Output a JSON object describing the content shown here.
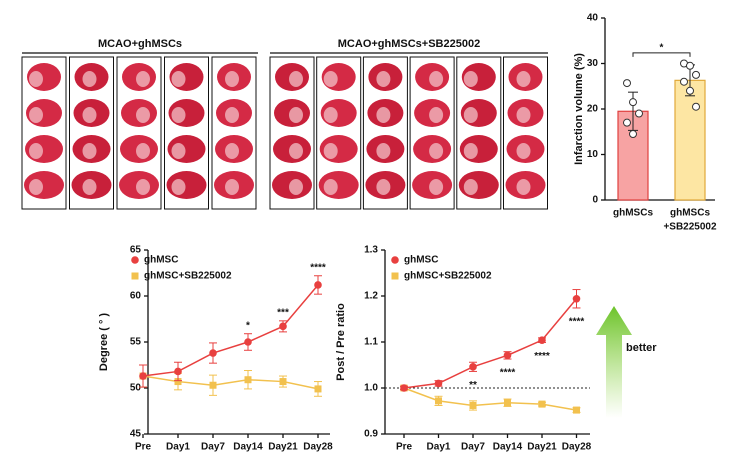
{
  "panel_labels": [
    "MCAO+ghMSCs",
    "MCAO+ghMSCs+SB225002"
  ],
  "better_label": "better",
  "chart_data": [
    {
      "type": "bar",
      "ylabel": "Infarction volume (%)",
      "categories": [
        [
          "ghMSCs"
        ],
        [
          "ghMSCs",
          "+SB225002"
        ]
      ],
      "values": [
        19.5,
        26.3
      ],
      "errors": [
        4.2,
        3.4
      ],
      "points": [
        [
          25.7,
          21.5,
          19,
          17,
          14.5
        ],
        [
          30,
          29.5,
          27.5,
          26,
          24,
          20.5
        ]
      ],
      "colors": [
        "#f7a3a3",
        "#fde6a3"
      ],
      "edge_colors": [
        "#e0403f",
        "#e0a83a"
      ],
      "ylim": [
        0,
        40
      ],
      "yticks": [
        0,
        10,
        20,
        30,
        40
      ],
      "annotation": "*"
    },
    {
      "type": "line",
      "ylabel": "Degree ( ° )",
      "categories": [
        "Pre",
        "Day1",
        "Day7",
        "Day14",
        "Day21",
        "Day28"
      ],
      "series": [
        {
          "name": "ghMSC",
          "color": "#e8403f",
          "marker": "circle",
          "values": [
            51.3,
            51.8,
            53.8,
            55.0,
            56.7,
            61.2
          ],
          "errors": [
            1.2,
            1.0,
            1.1,
            0.9,
            0.6,
            1.0
          ]
        },
        {
          "name": "ghMSC+SB225002",
          "color": "#f2c14e",
          "marker": "square",
          "values": [
            51.3,
            50.7,
            50.3,
            50.9,
            50.7,
            49.9
          ],
          "errors": [
            1.2,
            0.9,
            1.1,
            1.0,
            0.6,
            0.8
          ]
        }
      ],
      "annotations": [
        null,
        null,
        null,
        "*",
        "***",
        "****"
      ],
      "annotation_position": "above",
      "ylim": [
        45,
        65
      ],
      "yticks": [
        45,
        50,
        55,
        60,
        65
      ]
    },
    {
      "type": "line",
      "ylabel": "Post / Pre ratio",
      "categories": [
        "Pre",
        "Day1",
        "Day7",
        "Day14",
        "Day21",
        "Day28"
      ],
      "series": [
        {
          "name": "ghMSC",
          "color": "#e8403f",
          "marker": "circle",
          "values": [
            1.0,
            1.01,
            1.046,
            1.071,
            1.104,
            1.194
          ],
          "errors": [
            0.004,
            0.006,
            0.01,
            0.008,
            0.005,
            0.02
          ]
        },
        {
          "name": "ghMSC+SB225002",
          "color": "#f2c14e",
          "marker": "square",
          "values": [
            1.0,
            0.972,
            0.962,
            0.968,
            0.965,
            0.952
          ],
          "errors": [
            0.003,
            0.01,
            0.01,
            0.008,
            0.004,
            0.005
          ]
        }
      ],
      "annotations": [
        null,
        null,
        "**",
        "****",
        "****",
        "****"
      ],
      "annotation_position": "below",
      "reference_line": 1,
      "ylim": [
        0.9,
        1.3
      ],
      "yticks": [
        0.9,
        {
          "value": 1,
          "label": "1.0"
        },
        1.1,
        1.2,
        1.3
      ]
    }
  ]
}
